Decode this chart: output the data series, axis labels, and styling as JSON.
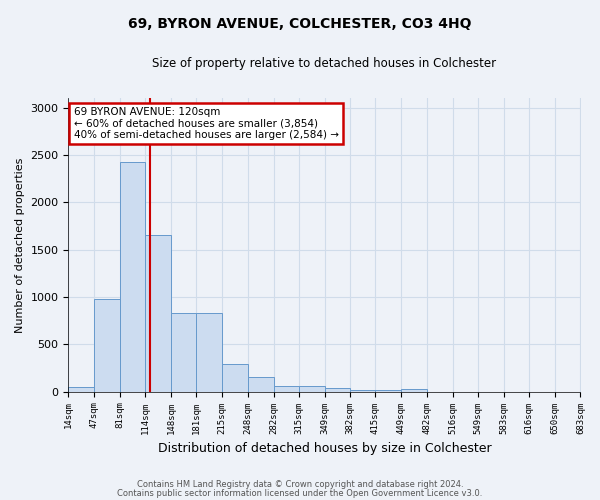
{
  "title": "69, BYRON AVENUE, COLCHESTER, CO3 4HQ",
  "subtitle": "Size of property relative to detached houses in Colchester",
  "xlabel": "Distribution of detached houses by size in Colchester",
  "ylabel": "Number of detached properties",
  "footer_line1": "Contains HM Land Registry data © Crown copyright and database right 2024.",
  "footer_line2": "Contains public sector information licensed under the Open Government Licence v3.0.",
  "bin_edges": [
    14,
    47,
    81,
    114,
    148,
    181,
    215,
    248,
    282,
    315,
    349,
    382,
    415,
    449,
    482,
    516,
    549,
    583,
    616,
    650,
    683
  ],
  "bar_heights": [
    50,
    980,
    2430,
    1650,
    830,
    830,
    290,
    150,
    55,
    55,
    35,
    20,
    20,
    30,
    0,
    0,
    0,
    0,
    0,
    0
  ],
  "bar_color": "#ccdcf0",
  "bar_edge_color": "#6699cc",
  "property_size": 120,
  "vline_color": "#cc0000",
  "annotation_text": "69 BYRON AVENUE: 120sqm\n← 60% of detached houses are smaller (3,854)\n40% of semi-detached houses are larger (2,584) →",
  "annotation_box_color": "#ffffff",
  "annotation_box_edge_color": "#cc0000",
  "ylim": [
    0,
    3100
  ],
  "yticks": [
    0,
    500,
    1000,
    1500,
    2000,
    2500,
    3000
  ],
  "grid_color": "#d0dcea",
  "background_color": "#eef2f8"
}
